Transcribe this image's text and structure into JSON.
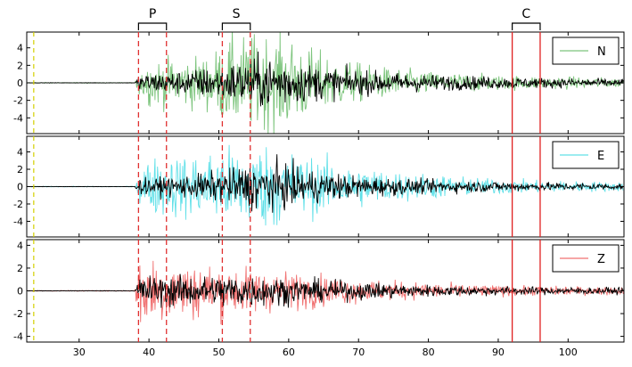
{
  "chart_data": {
    "type": "line",
    "x_range": [
      22.5,
      108
    ],
    "x_ticks": [
      30,
      40,
      50,
      60,
      70,
      80,
      90,
      100
    ],
    "phase_windows": [
      {
        "label": "P",
        "start": 38.5,
        "end": 42.5,
        "line_color": "#e03030",
        "line_style": "dashed"
      },
      {
        "label": "S",
        "start": 50.5,
        "end": 54.5,
        "line_color": "#e03030",
        "line_style": "dashed"
      },
      {
        "label": "C",
        "start": 92.0,
        "end": 96.0,
        "line_color": "#e02020",
        "line_style": "solid"
      }
    ],
    "reference_line": {
      "x": 23.5,
      "color": "#d4d000",
      "line_style": "dashed"
    },
    "panels": [
      {
        "legend_label": "N",
        "raw_color": "#7cc47c",
        "filtered_color": "#000000",
        "ylim": [
          -5.8,
          5.8
        ],
        "y_ticks": [
          -4,
          -2,
          0,
          2,
          4
        ],
        "raw_envelope": [
          [
            22.5,
            0.05
          ],
          [
            38,
            0.05
          ],
          [
            38.6,
            1.8
          ],
          [
            40,
            3.0
          ],
          [
            44,
            3.2
          ],
          [
            48,
            3.6
          ],
          [
            50,
            4.6
          ],
          [
            52,
            6.0
          ],
          [
            56,
            6.5
          ],
          [
            60,
            6.2
          ],
          [
            64,
            4.2
          ],
          [
            68,
            3.0
          ],
          [
            72,
            2.2
          ],
          [
            80,
            1.5
          ],
          [
            90,
            1.0
          ],
          [
            100,
            0.8
          ],
          [
            108,
            0.6
          ]
        ],
        "filtered_envelope": [
          [
            22.5,
            0.03
          ],
          [
            38,
            0.03
          ],
          [
            38.6,
            1.2
          ],
          [
            44,
            1.5
          ],
          [
            50,
            2.2
          ],
          [
            54,
            3.2
          ],
          [
            58,
            3.5
          ],
          [
            62,
            2.6
          ],
          [
            70,
            1.6
          ],
          [
            80,
            1.1
          ],
          [
            90,
            0.8
          ],
          [
            100,
            0.6
          ],
          [
            108,
            0.5
          ]
        ]
      },
      {
        "legend_label": "E",
        "raw_color": "#60e0e8",
        "filtered_color": "#000000",
        "ylim": [
          -5.8,
          5.8
        ],
        "y_ticks": [
          -4,
          -2,
          0,
          2,
          4
        ],
        "raw_envelope": [
          [
            22.5,
            0.05
          ],
          [
            38,
            0.05
          ],
          [
            38.6,
            2.5
          ],
          [
            40,
            3.8
          ],
          [
            44,
            4.2
          ],
          [
            48,
            4.5
          ],
          [
            52,
            5.4
          ],
          [
            58,
            5.6
          ],
          [
            62,
            4.2
          ],
          [
            68,
            3.0
          ],
          [
            76,
            2.0
          ],
          [
            86,
            1.2
          ],
          [
            96,
            0.8
          ],
          [
            108,
            0.6
          ]
        ],
        "filtered_envelope": [
          [
            22.5,
            0.03
          ],
          [
            38,
            0.03
          ],
          [
            38.6,
            1.0
          ],
          [
            44,
            1.4
          ],
          [
            50,
            2.0
          ],
          [
            54,
            3.0
          ],
          [
            58,
            3.2
          ],
          [
            62,
            2.4
          ],
          [
            70,
            1.4
          ],
          [
            80,
            0.9
          ],
          [
            94,
            0.6
          ],
          [
            108,
            0.4
          ]
        ]
      },
      {
        "legend_label": "Z",
        "raw_color": "#f07070",
        "filtered_color": "#000000",
        "ylim": [
          -4.5,
          4.5
        ],
        "y_ticks": [
          -4,
          -2,
          0,
          2,
          4
        ],
        "raw_envelope": [
          [
            22.5,
            0.04
          ],
          [
            38,
            0.04
          ],
          [
            38.6,
            4.3
          ],
          [
            40,
            3.8
          ],
          [
            44,
            3.0
          ],
          [
            50,
            2.6
          ],
          [
            56,
            2.2
          ],
          [
            62,
            1.8
          ],
          [
            70,
            1.2
          ],
          [
            80,
            0.8
          ],
          [
            92,
            0.5
          ],
          [
            108,
            0.4
          ]
        ],
        "filtered_envelope": [
          [
            22.5,
            0.03
          ],
          [
            38,
            0.03
          ],
          [
            38.6,
            1.5
          ],
          [
            42,
            1.6
          ],
          [
            48,
            1.5
          ],
          [
            52,
            1.8
          ],
          [
            56,
            1.6
          ],
          [
            62,
            1.2
          ],
          [
            70,
            0.9
          ],
          [
            80,
            0.6
          ],
          [
            92,
            0.4
          ],
          [
            108,
            0.35
          ]
        ]
      }
    ]
  }
}
